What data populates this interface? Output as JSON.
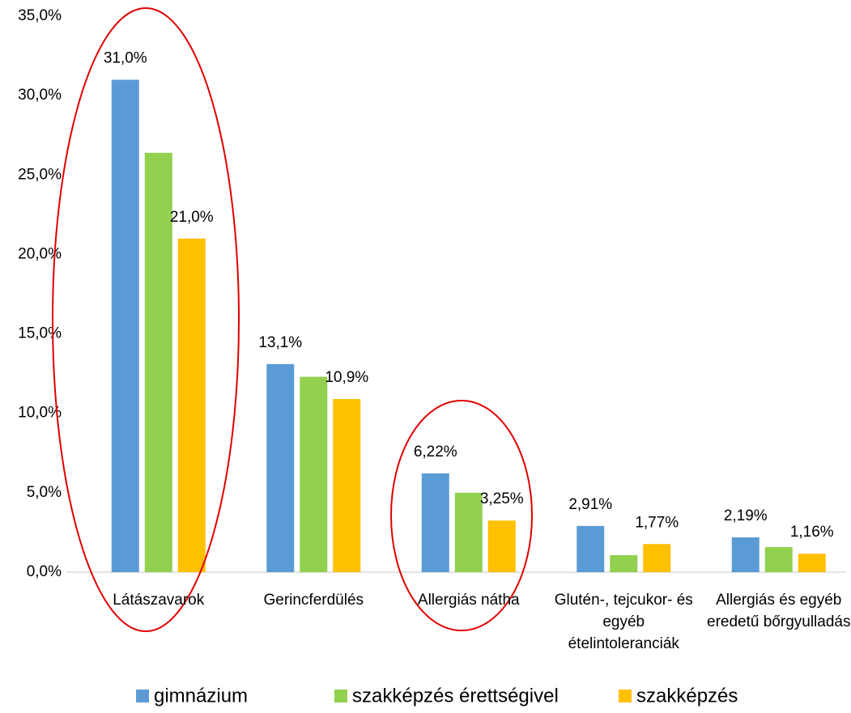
{
  "chart_data": {
    "type": "bar",
    "categories": [
      "Látászavarok",
      "Gerincferdülés",
      "Allergiás nátha",
      "Glutén-, tejcukor- és egyéb ételintoleranciák",
      "Allergiás és egyéb eredetű bőrgyulladás"
    ],
    "series": [
      {
        "name": "gimnázium",
        "color": "#5b9bd5",
        "values": [
          31.0,
          13.1,
          6.22,
          2.91,
          2.19
        ],
        "value_labels": [
          "31,0%",
          "13,1%",
          "6,22%",
          "2,91%",
          "2,19%"
        ]
      },
      {
        "name": "szakképzés érettségivel",
        "color": "#92d050",
        "values": [
          26.4,
          12.3,
          5.0,
          1.07,
          1.58
        ]
      },
      {
        "name": "szakképzés",
        "color": "#ffc000",
        "values": [
          21.0,
          10.9,
          3.25,
          1.77,
          1.16
        ],
        "value_labels": [
          "21,0%",
          "10,9%",
          "3,25%",
          "1,77%",
          "1,16%"
        ]
      }
    ],
    "ylim": [
      0,
      35
    ],
    "yticks": [
      {
        "value": 0,
        "label": "0,0%"
      },
      {
        "value": 5,
        "label": "5,0%"
      },
      {
        "value": 10,
        "label": "10,0%"
      },
      {
        "value": 15,
        "label": "15,0%"
      },
      {
        "value": 20,
        "label": "20,0%"
      },
      {
        "value": 25,
        "label": "25,0%"
      },
      {
        "value": 30,
        "label": "30,0%"
      },
      {
        "value": 35,
        "label": "35,0%"
      }
    ],
    "grid": false
  }
}
